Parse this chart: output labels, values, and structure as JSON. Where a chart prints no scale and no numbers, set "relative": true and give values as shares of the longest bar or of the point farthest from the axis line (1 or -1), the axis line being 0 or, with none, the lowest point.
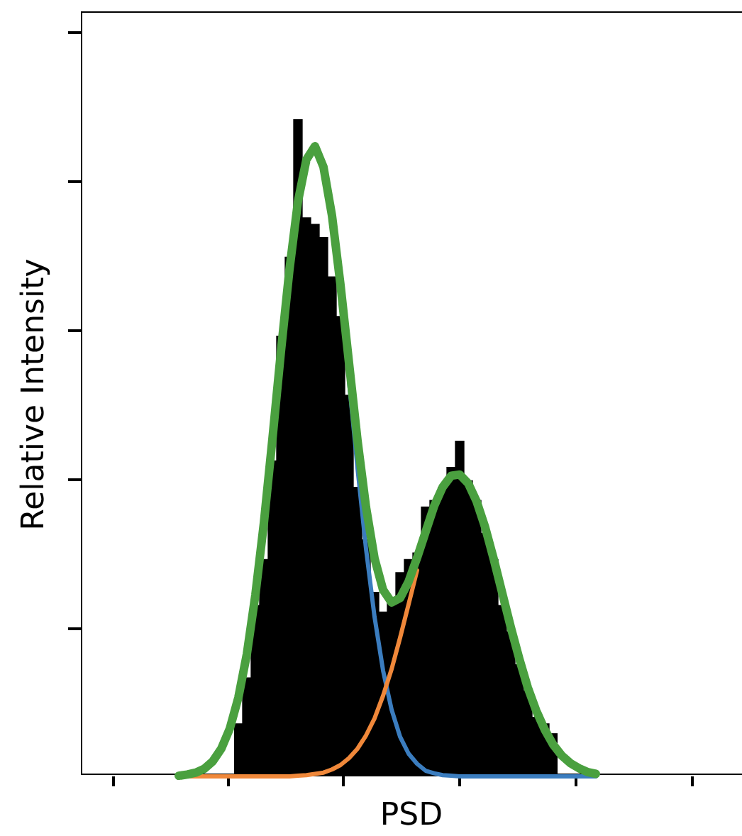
{
  "chart_data": [
    {
      "type": "bar",
      "relative": true,
      "xlabel": "PSD",
      "ylabel": "Relative Intensity",
      "legend": false,
      "color": "#000000",
      "categories": [
        null,
        null,
        null,
        null,
        null,
        null,
        null,
        null,
        null,
        null,
        null,
        null,
        null,
        null,
        null,
        null,
        null,
        null,
        null,
        null,
        null,
        null,
        null,
        null,
        null,
        null,
        null,
        null,
        null,
        null,
        null,
        null,
        null,
        null,
        null,
        null,
        null,
        null
      ],
      "values": [
        0.08,
        0.15,
        0.26,
        0.33,
        0.48,
        0.67,
        0.79,
        1.0,
        0.85,
        0.84,
        0.82,
        0.76,
        0.7,
        0.58,
        0.44,
        0.36,
        0.28,
        0.25,
        0.27,
        0.31,
        0.33,
        0.34,
        0.41,
        0.42,
        0.44,
        0.47,
        0.51,
        0.45,
        0.42,
        0.37,
        0.33,
        0.26,
        0.22,
        0.17,
        0.13,
        0.09,
        0.08,
        0.065
      ]
    },
    {
      "type": "line",
      "relative": true,
      "legend": false,
      "categories": [
        null,
        null,
        null,
        null,
        null,
        null,
        null,
        null,
        null,
        null,
        null,
        null,
        null,
        null,
        null,
        null,
        null,
        null,
        null,
        null,
        null,
        null,
        null,
        null,
        null,
        null,
        null,
        null,
        null,
        null,
        null,
        null,
        null,
        null,
        null,
        null,
        null,
        null,
        null,
        null,
        null,
        null,
        null,
        null,
        null,
        null,
        null,
        null,
        null,
        null
      ],
      "series": [
        {
          "color": "#3b7dbf",
          "values": [
            null,
            null,
            null,
            null,
            null,
            null,
            null,
            null,
            null,
            null,
            null,
            null,
            null,
            null,
            null,
            null,
            null,
            null,
            null,
            null,
            0.627,
            0.489,
            0.361,
            0.253,
            0.168,
            0.106,
            0.063,
            0.036,
            0.02,
            0.009,
            0.005,
            0.002,
            0.001,
            0,
            0,
            0,
            0,
            0,
            0,
            0,
            0,
            0,
            0,
            0,
            0,
            0,
            0,
            0,
            0,
            0
          ]
        },
        {
          "color": "#f0883a",
          "values": [
            0,
            0,
            0,
            0,
            0,
            0,
            0,
            0,
            0,
            0,
            0,
            0,
            0,
            0,
            0.001,
            0.002,
            0.004,
            0.006,
            0.011,
            0.018,
            0.029,
            0.044,
            0.065,
            0.092,
            0.128,
            0.17,
            0.22,
            0.273,
            0.327,
            null,
            null,
            null,
            null,
            null,
            null,
            null,
            null,
            null,
            null,
            null,
            null,
            null,
            null,
            null,
            null,
            null,
            null,
            null,
            null,
            null
          ]
        },
        {
          "color": "#4aa03f",
          "values": [
            0.001,
            0.003,
            0.006,
            0.012,
            0.024,
            0.044,
            0.076,
            0.125,
            0.194,
            0.288,
            0.402,
            0.535,
            0.674,
            0.804,
            0.912,
            0.979,
            1.0,
            0.967,
            0.89,
            0.78,
            0.656,
            0.533,
            0.427,
            0.346,
            0.296,
            0.276,
            0.283,
            0.309,
            0.347,
            0.388,
            0.429,
            0.459,
            0.477,
            0.479,
            0.465,
            0.436,
            0.395,
            0.345,
            0.291,
            0.237,
            0.187,
            0.141,
            0.104,
            0.074,
            0.05,
            0.033,
            0.021,
            0.013,
            0.007,
            0.004
          ]
        }
      ]
    }
  ]
}
